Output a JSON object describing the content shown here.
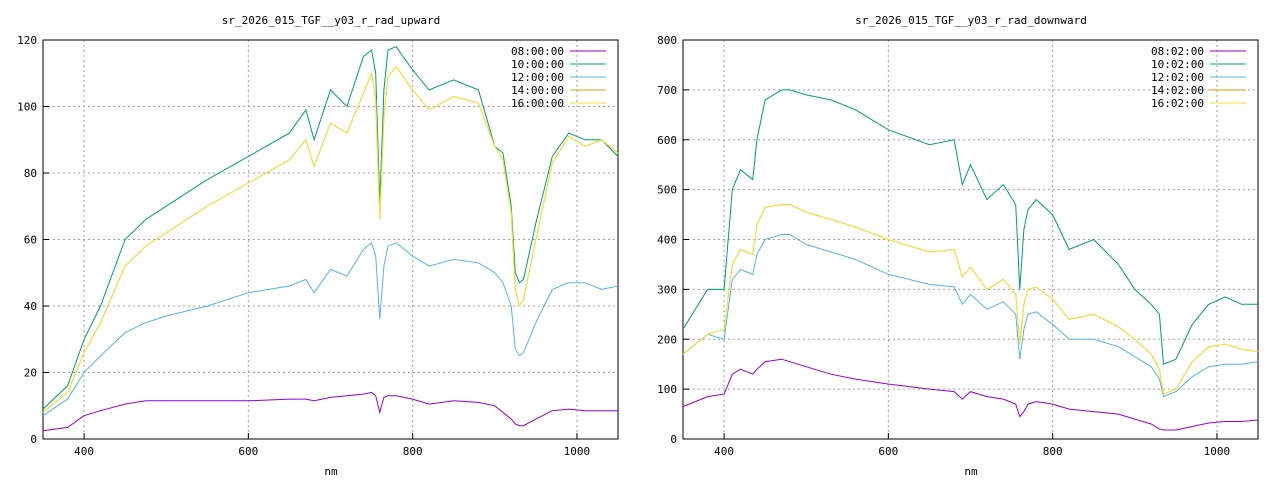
{
  "charts": [
    {
      "title": "sr_2026_015_TGF__y03_r_rad_upward",
      "xlabel": "nm",
      "ylabel": "",
      "xlim": [
        350,
        1050
      ],
      "ylim": [
        0,
        120
      ],
      "xticks": [
        400,
        600,
        800,
        1000
      ],
      "yticks": [
        0,
        20,
        40,
        60,
        80,
        100,
        120
      ],
      "legend_position": "top-right"
    },
    {
      "title": "sr_2026_015_TGF__y03_r_rad_downward",
      "xlabel": "nm",
      "ylabel": "",
      "xlim": [
        350,
        1050
      ],
      "ylim": [
        0,
        800
      ],
      "xticks": [
        400,
        600,
        800,
        1000
      ],
      "yticks": [
        0,
        100,
        200,
        300,
        400,
        500,
        600,
        700,
        800
      ],
      "legend_position": "top-right"
    }
  ],
  "chart_data": [
    {
      "type": "line",
      "title": "sr_2026_015_TGF__y03_r_rad_upward",
      "xlabel": "nm",
      "x": [
        350,
        380,
        400,
        420,
        450,
        475,
        500,
        550,
        600,
        650,
        670,
        680,
        700,
        720,
        740,
        750,
        755,
        760,
        765,
        770,
        780,
        800,
        820,
        850,
        880,
        900,
        910,
        920,
        925,
        930,
        935,
        950,
        970,
        990,
        1010,
        1030,
        1050
      ],
      "series": [
        {
          "name": "08:00:00",
          "color": "#9400d3",
          "values": [
            2.5,
            3.5,
            7,
            8.5,
            10.5,
            11.5,
            11.5,
            11.5,
            11.5,
            12,
            12,
            11.5,
            12.5,
            13,
            13.5,
            14,
            13,
            8,
            12.5,
            13,
            13,
            12,
            10.5,
            11.5,
            11,
            10,
            8,
            6,
            4.5,
            4,
            4,
            6,
            8.5,
            9,
            8.5,
            8.5,
            8.5
          ]
        },
        {
          "name": "10:00:00",
          "color": "#009e73",
          "values": [
            9,
            16,
            30,
            40,
            60,
            66,
            70,
            78,
            85,
            92,
            99,
            90,
            105,
            100,
            115,
            117,
            110,
            71,
            105,
            117,
            118,
            111,
            105,
            108,
            105,
            88,
            86,
            70,
            50,
            47,
            48,
            65,
            85,
            92,
            90,
            90,
            85
          ]
        },
        {
          "name": "12:00:00",
          "color": "#56b4e9",
          "values": [
            7,
            12,
            20,
            25,
            32,
            35,
            37,
            40,
            44,
            46,
            48,
            44,
            51,
            49,
            57,
            59,
            55,
            36,
            52,
            58,
            59,
            55,
            52,
            54,
            53,
            50,
            47,
            40,
            27,
            25,
            26,
            35,
            45,
            47,
            47,
            45,
            46
          ]
        },
        {
          "name": "14:00:00",
          "color": "#e69f00",
          "values": [
            8,
            14,
            26,
            35,
            52,
            58,
            62,
            70,
            77,
            84,
            90,
            82,
            95,
            92,
            104,
            110,
            102,
            66,
            97,
            109,
            112,
            105,
            99,
            103,
            101,
            88,
            84,
            68,
            45,
            40,
            42,
            60,
            83,
            91,
            88,
            90,
            86
          ]
        },
        {
          "name": "16:00:00",
          "color": "#f0e442",
          "values": [
            8,
            14,
            26,
            35,
            52,
            58,
            62,
            70,
            77,
            84,
            90,
            82,
            95,
            92,
            104,
            110,
            102,
            66,
            97,
            109,
            112,
            105,
            99,
            103,
            101,
            88,
            84,
            68,
            45,
            40,
            42,
            60,
            83,
            91,
            88,
            90,
            86
          ]
        }
      ],
      "xlim": [
        350,
        1050
      ],
      "ylim": [
        0,
        120
      ],
      "grid": true,
      "legend_position": "top-right"
    },
    {
      "type": "line",
      "title": "sr_2026_015_TGF__y03_r_rad_downward",
      "xlabel": "nm",
      "x": [
        350,
        380,
        400,
        410,
        420,
        435,
        440,
        450,
        470,
        480,
        500,
        530,
        560,
        600,
        650,
        680,
        690,
        700,
        720,
        740,
        755,
        760,
        765,
        770,
        780,
        800,
        820,
        850,
        880,
        900,
        920,
        930,
        935,
        950,
        970,
        990,
        1010,
        1030,
        1050
      ],
      "series": [
        {
          "name": "08:02:00",
          "color": "#9400d3",
          "values": [
            65,
            85,
            90,
            130,
            140,
            130,
            140,
            155,
            160,
            155,
            145,
            130,
            120,
            110,
            100,
            95,
            80,
            95,
            85,
            80,
            70,
            45,
            55,
            70,
            75,
            70,
            60,
            55,
            50,
            40,
            30,
            20,
            18,
            18,
            25,
            32,
            35,
            35,
            38
          ]
        },
        {
          "name": "10:02:00",
          "color": "#009e73",
          "values": [
            220,
            300,
            300,
            500,
            540,
            520,
            600,
            680,
            700,
            700,
            690,
            680,
            660,
            620,
            590,
            600,
            510,
            550,
            480,
            510,
            470,
            300,
            420,
            460,
            480,
            450,
            380,
            400,
            350,
            300,
            270,
            250,
            150,
            160,
            230,
            270,
            285,
            270,
            270
          ]
        },
        {
          "name": "12:02:00",
          "color": "#56b4e9",
          "values": [
            170,
            210,
            200,
            320,
            340,
            330,
            370,
            400,
            410,
            410,
            390,
            375,
            360,
            330,
            310,
            305,
            270,
            290,
            260,
            275,
            250,
            160,
            220,
            250,
            255,
            230,
            200,
            200,
            185,
            165,
            145,
            120,
            85,
            95,
            125,
            145,
            150,
            150,
            155
          ]
        },
        {
          "name": "14:02:00",
          "color": "#e69f00",
          "values": [
            170,
            210,
            220,
            350,
            380,
            370,
            430,
            465,
            470,
            470,
            455,
            440,
            425,
            400,
            375,
            380,
            325,
            345,
            300,
            320,
            290,
            190,
            270,
            300,
            305,
            280,
            240,
            250,
            225,
            200,
            170,
            140,
            90,
            100,
            155,
            185,
            190,
            180,
            175
          ]
        },
        {
          "name": "16:02:00",
          "color": "#f0e442",
          "values": [
            170,
            210,
            220,
            350,
            380,
            370,
            430,
            465,
            470,
            470,
            455,
            440,
            425,
            400,
            375,
            380,
            325,
            345,
            300,
            320,
            290,
            190,
            270,
            300,
            305,
            280,
            240,
            250,
            225,
            200,
            170,
            140,
            90,
            100,
            155,
            185,
            190,
            180,
            175
          ]
        }
      ],
      "xlim": [
        350,
        1050
      ],
      "ylim": [
        0,
        800
      ],
      "grid": true,
      "legend_position": "top-right"
    }
  ]
}
